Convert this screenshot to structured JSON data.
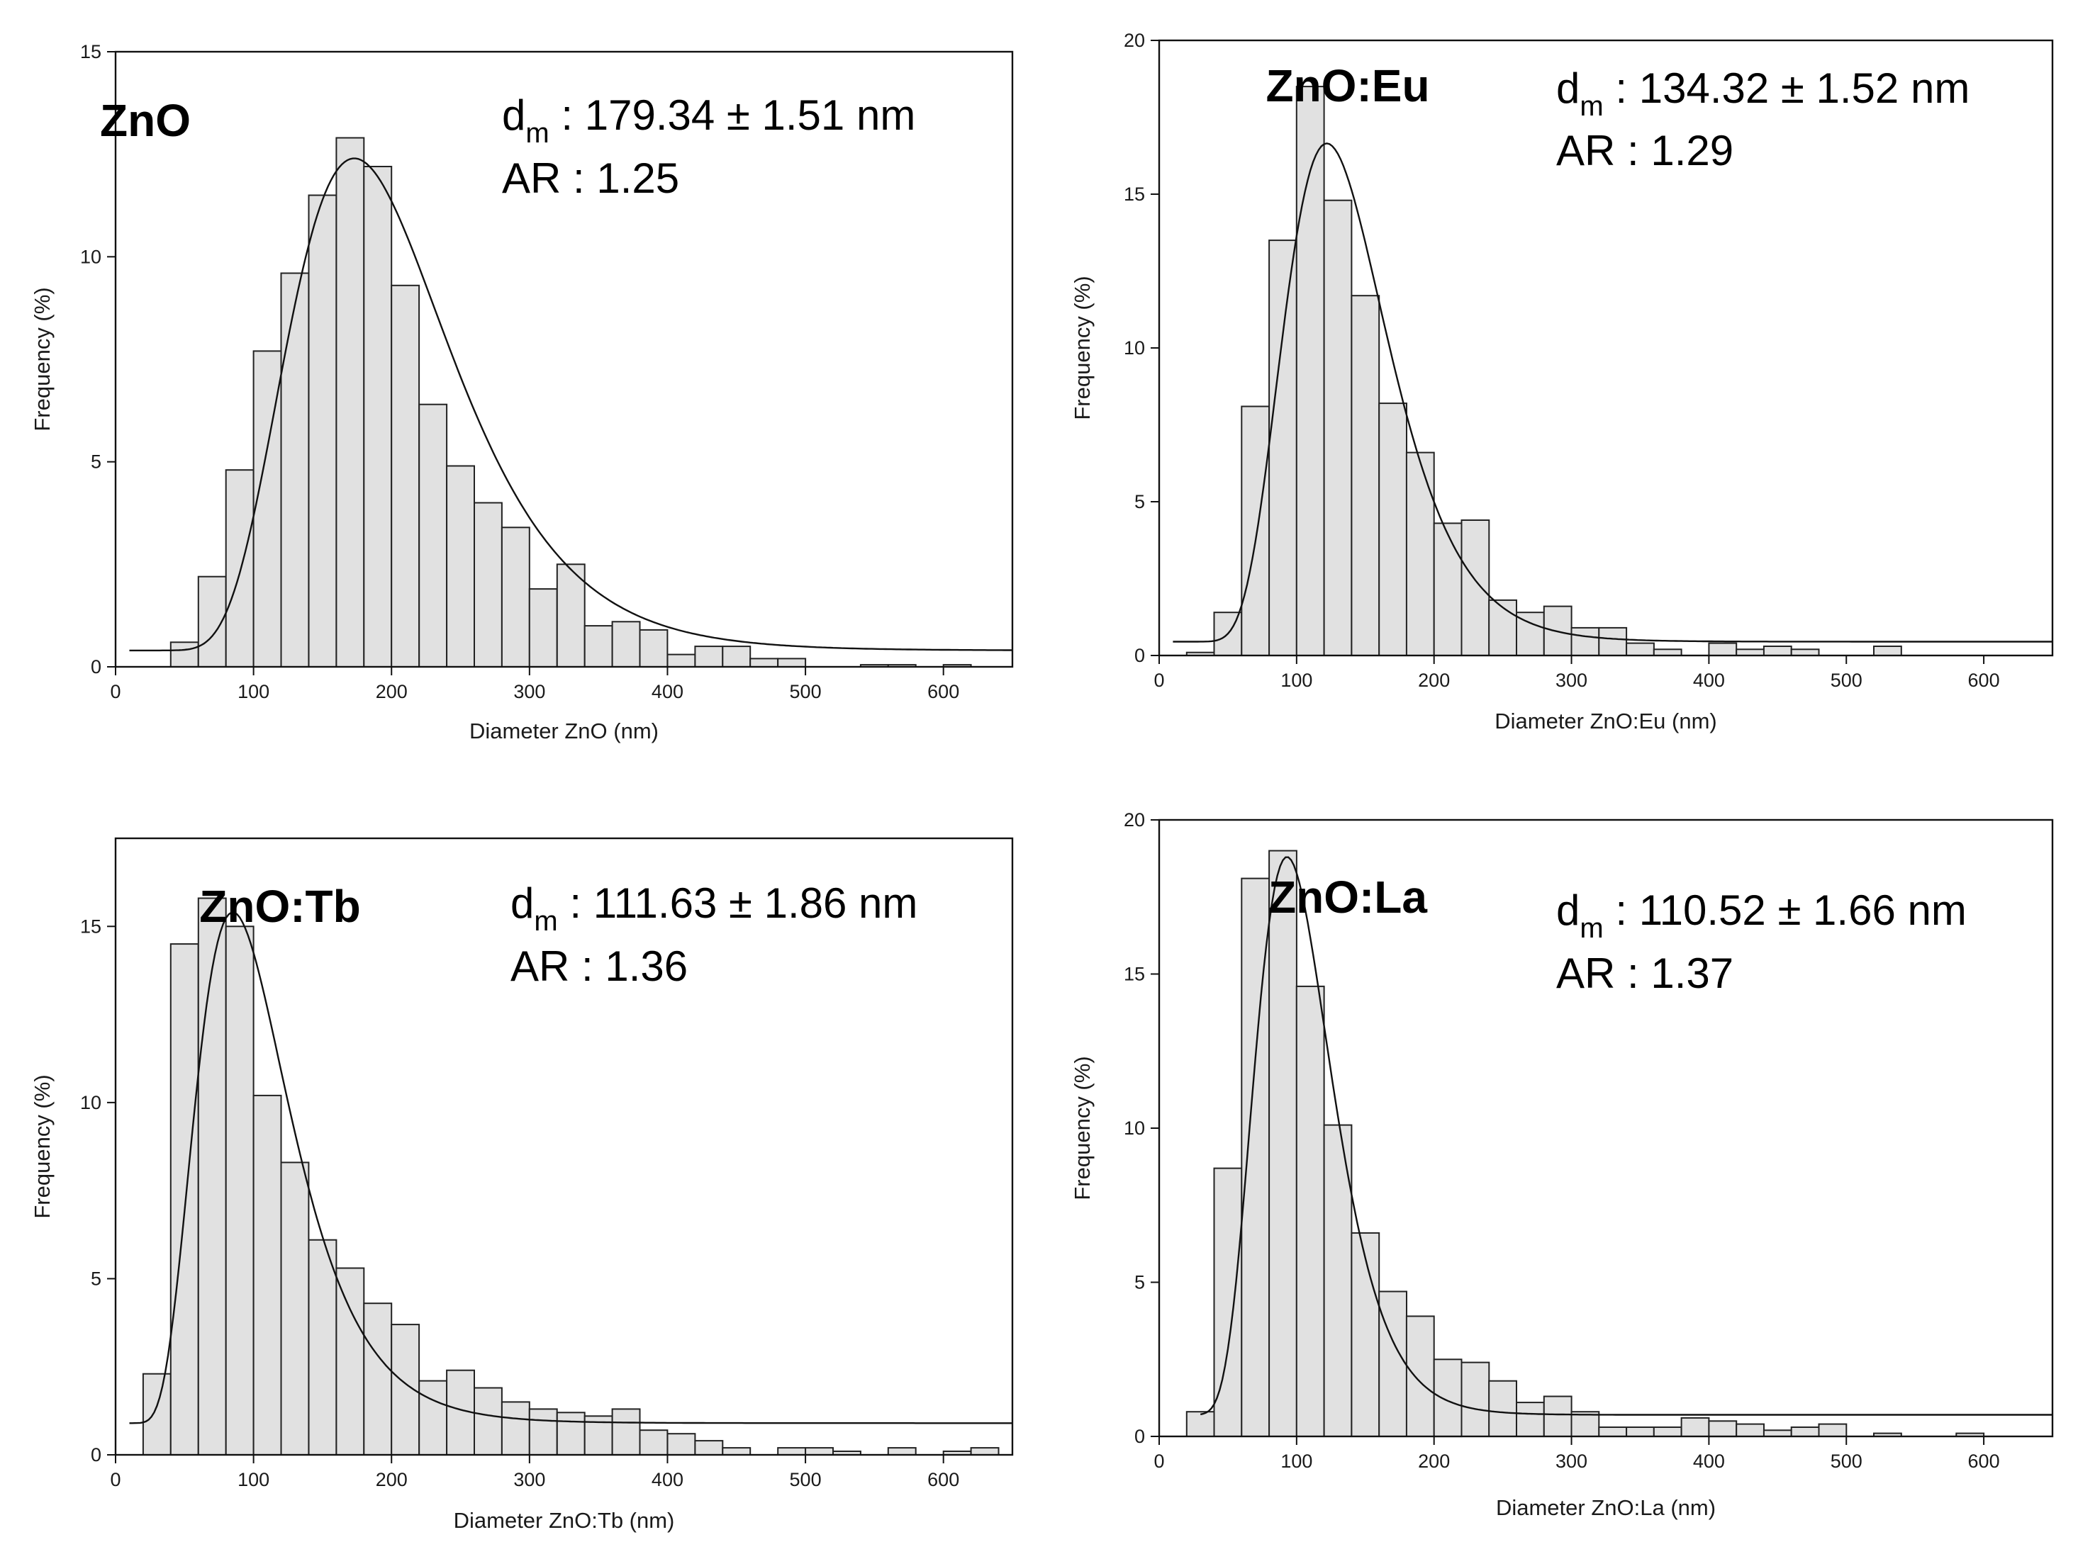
{
  "chart_data": [
    {
      "type": "histogram",
      "sample": "ZnO",
      "stat_dm_symbol": "d",
      "stat_dm_sub": "m",
      "stat_dm_value": " : 179.34 ± 1.51 nm",
      "stat_ar": "AR : 1.25",
      "xlabel": "Diameter ZnO (nm)",
      "ylabel": "Frequency (%)",
      "xlim": [
        0,
        650
      ],
      "ylim": [
        0,
        15
      ],
      "xticks": [
        0,
        100,
        200,
        300,
        400,
        500,
        600
      ],
      "yticks": [
        0,
        5,
        10,
        15
      ],
      "bin_width": 20,
      "bin_starts": [
        40,
        60,
        80,
        100,
        120,
        140,
        160,
        180,
        200,
        220,
        240,
        260,
        280,
        300,
        320,
        340,
        360,
        380,
        400,
        420,
        440,
        460,
        480,
        500,
        540,
        560,
        600
      ],
      "values": [
        0.6,
        2.2,
        4.8,
        7.7,
        9.6,
        11.5,
        12.9,
        12.2,
        9.3,
        6.4,
        4.9,
        4.0,
        3.4,
        1.9,
        2.5,
        1.0,
        1.1,
        0.9,
        0.3,
        0.5,
        0.5,
        0.2,
        0.2,
        0.0,
        0.05,
        0.05,
        0.05
      ],
      "fit": {
        "type": "lognormal",
        "baseline": 0.4,
        "peak": 173,
        "amplitude": 12.0,
        "sigma": 0.34,
        "x_range": [
          10,
          650
        ]
      }
    },
    {
      "type": "histogram",
      "sample": "ZnO:Eu",
      "stat_dm_symbol": "d",
      "stat_dm_sub": "m",
      "stat_dm_value": " : 134.32 ± 1.52 nm",
      "stat_ar": "AR : 1.29",
      "xlabel": "Diameter ZnO:Eu (nm)",
      "ylabel": "Frequency (%)",
      "xlim": [
        0,
        650
      ],
      "ylim": [
        0,
        20
      ],
      "xticks": [
        0,
        100,
        200,
        300,
        400,
        500,
        600
      ],
      "yticks": [
        0,
        5,
        10,
        15,
        20
      ],
      "bin_width": 20,
      "bin_starts": [
        20,
        40,
        60,
        80,
        100,
        120,
        140,
        160,
        180,
        200,
        220,
        240,
        260,
        280,
        300,
        320,
        340,
        360,
        400,
        420,
        440,
        460,
        520
      ],
      "values": [
        0.1,
        1.4,
        8.1,
        13.5,
        18.5,
        14.8,
        11.7,
        8.2,
        6.6,
        4.3,
        4.4,
        1.8,
        1.4,
        1.6,
        0.9,
        0.9,
        0.4,
        0.2,
        0.4,
        0.2,
        0.3,
        0.2,
        0.3
      ],
      "fit": {
        "type": "lognormal",
        "baseline": 0.45,
        "peak": 122,
        "amplitude": 16.2,
        "sigma": 0.31,
        "x_range": [
          10,
          650
        ]
      }
    },
    {
      "type": "histogram",
      "sample": "ZnO:Tb",
      "stat_dm_symbol": "d",
      "stat_dm_sub": "m",
      "stat_dm_value": " : 111.63 ± 1.86 nm",
      "stat_ar": "AR : 1.36",
      "xlabel": "Diameter ZnO:Tb (nm)",
      "ylabel": "Frequency (%)",
      "xlim": [
        0,
        650
      ],
      "ylim": [
        0,
        17.5
      ],
      "xticks": [
        0,
        100,
        200,
        300,
        400,
        500,
        600
      ],
      "yticks": [
        0,
        5,
        10,
        15
      ],
      "bin_width": 20,
      "bin_starts": [
        20,
        40,
        60,
        80,
        100,
        120,
        140,
        160,
        180,
        200,
        220,
        240,
        260,
        280,
        300,
        320,
        340,
        360,
        380,
        400,
        420,
        440,
        480,
        500,
        520,
        560,
        600,
        620
      ],
      "values": [
        2.3,
        14.5,
        15.8,
        15.0,
        10.2,
        8.3,
        6.1,
        5.3,
        4.3,
        3.7,
        2.1,
        2.4,
        1.9,
        1.5,
        1.3,
        1.2,
        1.1,
        1.3,
        0.7,
        0.6,
        0.4,
        0.2,
        0.2,
        0.2,
        0.1,
        0.2,
        0.1,
        0.2
      ],
      "fit": {
        "type": "lognormal",
        "baseline": 0.9,
        "peak": 85,
        "amplitude": 14.5,
        "sigma": 0.4,
        "x_range": [
          10,
          650
        ]
      }
    },
    {
      "type": "histogram",
      "sample": "ZnO:La",
      "stat_dm_symbol": "d",
      "stat_dm_sub": "m",
      "stat_dm_value": " : 110.52 ± 1.66 nm",
      "stat_ar": "AR : 1.37",
      "xlabel": "Diameter ZnO:La (nm)",
      "ylabel": "Frequency (%)",
      "xlim": [
        0,
        650
      ],
      "ylim": [
        0,
        20
      ],
      "xticks": [
        0,
        100,
        200,
        300,
        400,
        500,
        600
      ],
      "yticks": [
        0,
        5,
        10,
        15,
        20
      ],
      "bin_width": 20,
      "bin_starts": [
        20,
        40,
        60,
        80,
        100,
        120,
        140,
        160,
        180,
        200,
        220,
        240,
        260,
        280,
        300,
        320,
        340,
        360,
        380,
        400,
        420,
        440,
        460,
        480,
        520,
        580
      ],
      "values": [
        0.8,
        8.7,
        18.1,
        19.0,
        14.6,
        10.1,
        6.6,
        4.7,
        3.9,
        2.5,
        2.4,
        1.8,
        1.1,
        1.3,
        0.8,
        0.3,
        0.3,
        0.3,
        0.6,
        0.5,
        0.4,
        0.2,
        0.3,
        0.4,
        0.1,
        0.1
      ],
      "fit": {
        "type": "lognormal",
        "baseline": 0.7,
        "peak": 93,
        "amplitude": 18.1,
        "sigma": 0.3,
        "x_range": [
          30,
          650
        ]
      }
    }
  ]
}
